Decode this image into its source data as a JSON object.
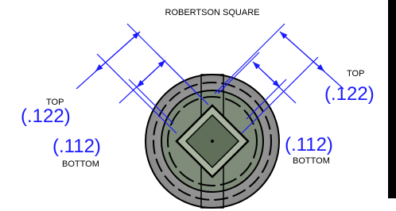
{
  "title": "ROBERTSON SQUARE",
  "left": {
    "top_label": "TOP",
    "top_value": "(.122)",
    "bottom_value": "(.112)",
    "bottom_label": "BOTTOM"
  },
  "right": {
    "top_label": "TOP",
    "top_value": "(.122)",
    "bottom_value": "(.112)",
    "bottom_label": "BOTTOM"
  }
}
